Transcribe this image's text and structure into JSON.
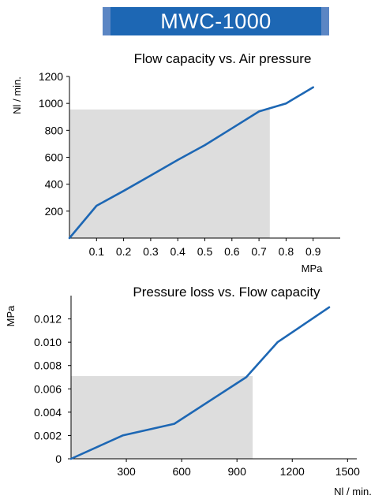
{
  "header": {
    "title": "MWC-1000",
    "colors": {
      "edge": "#5b86c4",
      "main": "#1d67b4"
    }
  },
  "colors": {
    "line": "#1d67b4",
    "shade": "#dddddd",
    "axis": "#000000"
  },
  "chart_data": [
    {
      "type": "line",
      "title": "Flow capacity vs. Air pressure",
      "xlabel": "MPa",
      "ylabel": "Nl / min.",
      "xlim": [
        0,
        1.0
      ],
      "ylim": [
        0,
        1200
      ],
      "xticks": [
        0.1,
        0.2,
        0.3,
        0.4,
        0.5,
        0.6,
        0.7,
        0.8,
        0.9
      ],
      "xtick_labels": [
        "0.1",
        "0.2",
        "0.3",
        "0.4",
        "0.5",
        "0.6",
        "0.7",
        "0.8",
        "0.9"
      ],
      "yticks": [
        200,
        400,
        600,
        800,
        1000,
        1200
      ],
      "ytick_labels": [
        "200",
        "400",
        "600",
        "800",
        "1000",
        "1200"
      ],
      "grid": false,
      "series": [
        {
          "x": [
            0,
            0.1,
            0.2,
            0.3,
            0.4,
            0.5,
            0.6,
            0.7,
            0.8,
            0.9
          ],
          "y": [
            0,
            240,
            350,
            465,
            580,
            690,
            815,
            940,
            1000,
            1120
          ]
        }
      ],
      "shaded_region": {
        "x": [
          0,
          0.74
        ],
        "y": [
          0,
          955
        ]
      }
    },
    {
      "type": "line",
      "title": "Pressure loss vs. Flow capacity",
      "xlabel": "Nl / min.",
      "ylabel": "MPa",
      "xlim": [
        0,
        1550
      ],
      "ylim": [
        0,
        0.014
      ],
      "xticks": [
        300,
        600,
        900,
        1200,
        1500
      ],
      "xtick_labels": [
        "300",
        "600",
        "900",
        "1200",
        "1500"
      ],
      "yticks": [
        0,
        0.002,
        0.004,
        0.006,
        0.008,
        0.01,
        0.012
      ],
      "ytick_labels": [
        "0",
        "0.002",
        "0.004",
        "0.006",
        "0.008",
        "0.010",
        "0.012"
      ],
      "grid": false,
      "series": [
        {
          "x": [
            0,
            280,
            560,
            950,
            1120,
            1400
          ],
          "y": [
            0,
            0.002,
            0.003,
            0.007,
            0.01,
            0.013
          ]
        }
      ],
      "shaded_region": {
        "x": [
          0,
          985
        ],
        "y": [
          0,
          0.0071
        ]
      }
    }
  ]
}
